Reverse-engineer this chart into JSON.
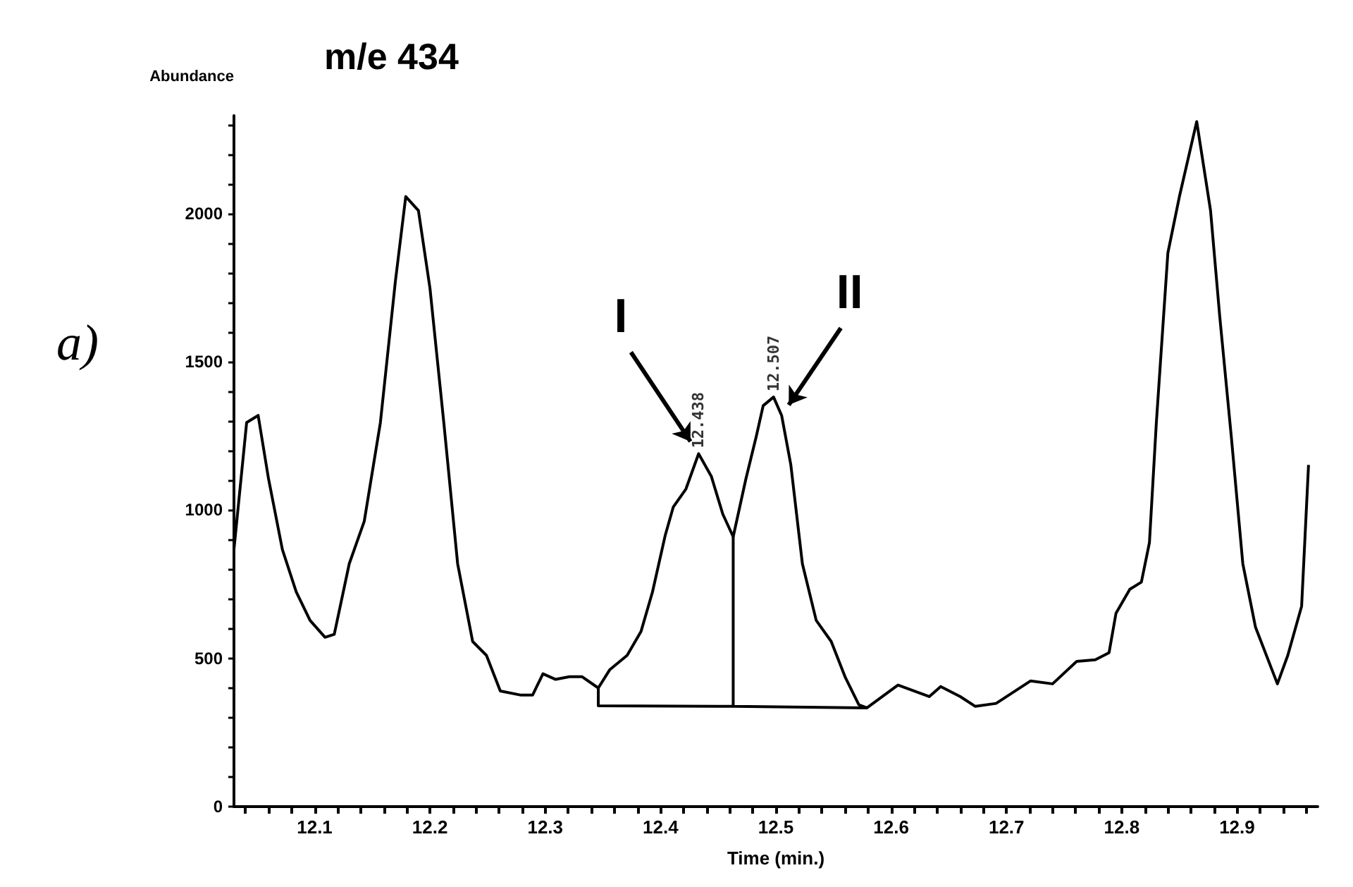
{
  "chart_data": {
    "type": "line",
    "title": "m/e 434",
    "xlabel": "Time (min.)",
    "ylabel": "Abundance",
    "xlim": [
      12.03,
      12.97
    ],
    "ylim": [
      0,
      2330
    ],
    "xticks": [
      {
        "value": 12.04,
        "label": null
      },
      {
        "value": 12.06,
        "label": null
      },
      {
        "value": 12.08,
        "label": null
      },
      12.1,
      {
        "value": 12.12,
        "label": null
      },
      {
        "value": 12.14,
        "label": null
      },
      {
        "value": 12.16,
        "label": null
      },
      {
        "value": 12.18,
        "label": null
      },
      12.2,
      {
        "value": 12.22,
        "label": null
      },
      {
        "value": 12.24,
        "label": null
      },
      {
        "value": 12.26,
        "label": null
      },
      {
        "value": 12.28,
        "label": null
      },
      12.3,
      {
        "value": 12.32,
        "label": null
      },
      {
        "value": 12.34,
        "label": null
      },
      {
        "value": 12.36,
        "label": null
      },
      {
        "value": 12.38,
        "label": null
      },
      12.4,
      {
        "value": 12.42,
        "label": null
      },
      {
        "value": 12.44,
        "label": null
      },
      {
        "value": 12.46,
        "label": null
      },
      {
        "value": 12.48,
        "label": null
      },
      12.5,
      {
        "value": 12.52,
        "label": null
      },
      {
        "value": 12.54,
        "label": null
      },
      {
        "value": 12.56,
        "label": null
      },
      {
        "value": 12.58,
        "label": null
      },
      12.6,
      {
        "value": 12.62,
        "label": null
      },
      {
        "value": 12.64,
        "label": null
      },
      {
        "value": 12.66,
        "label": null
      },
      {
        "value": 12.68,
        "label": null
      },
      12.7,
      {
        "value": 12.72,
        "label": null
      },
      {
        "value": 12.74,
        "label": null
      },
      {
        "value": 12.76,
        "label": null
      },
      {
        "value": 12.78,
        "label": null
      },
      12.8,
      {
        "value": 12.82,
        "label": null
      },
      {
        "value": 12.84,
        "label": null
      },
      {
        "value": 12.86,
        "label": null
      },
      {
        "value": 12.88,
        "label": null
      },
      12.9,
      {
        "value": 12.92,
        "label": null
      },
      {
        "value": 12.94,
        "label": null
      },
      {
        "value": 12.96,
        "label": null
      }
    ],
    "yticks": [
      0,
      {
        "value": 100,
        "label": null
      },
      {
        "value": 200,
        "label": null
      },
      {
        "value": 300,
        "label": null
      },
      {
        "value": 400,
        "label": null
      },
      500,
      {
        "value": 600,
        "label": null
      },
      {
        "value": 700,
        "label": null
      },
      {
        "value": 800,
        "label": null
      },
      {
        "value": 900,
        "label": null
      },
      1000,
      {
        "value": 1100,
        "label": null
      },
      {
        "value": 1200,
        "label": null
      },
      {
        "value": 1300,
        "label": null
      },
      {
        "value": 1400,
        "label": null
      },
      1500,
      {
        "value": 1600,
        "label": null
      },
      {
        "value": 1700,
        "label": null
      },
      {
        "value": 1800,
        "label": null
      },
      {
        "value": 1900,
        "label": null
      },
      2000,
      {
        "value": 2100,
        "label": null
      },
      {
        "value": 2200,
        "label": null
      },
      {
        "value": 2300,
        "label": null
      }
    ],
    "grid": false,
    "marker": "none",
    "line_style": "solid",
    "series": [
      {
        "color": "#000000",
        "x": [
          12.03,
          12.041,
          12.051,
          12.06,
          12.072,
          12.084,
          12.096,
          12.109,
          12.117,
          12.13,
          12.143,
          12.157,
          12.17,
          12.179,
          12.19,
          12.2,
          12.212,
          12.224,
          12.237,
          12.249,
          12.261,
          12.279,
          12.289,
          12.298,
          12.309,
          12.321,
          12.332,
          12.346,
          12.356,
          12.371,
          12.383,
          12.393,
          12.404,
          12.411,
          12.422,
          12.433,
          12.444,
          12.454,
          12.463,
          12.474,
          12.483,
          12.489,
          12.498,
          12.505,
          12.513,
          12.523,
          12.535,
          12.548,
          12.56,
          12.572,
          12.579,
          12.594,
          12.606,
          12.633,
          12.643,
          12.66,
          12.673,
          12.691,
          12.721,
          12.74,
          12.761,
          12.777,
          12.789,
          12.795,
          12.807,
          12.817,
          12.824,
          12.83,
          12.84,
          12.85,
          12.865,
          12.877,
          12.885,
          12.895,
          12.905,
          12.916,
          12.935,
          12.944,
          12.956,
          12.962
        ],
        "values": [
          867,
          1295,
          1319,
          1105,
          867,
          724,
          628,
          571,
          581,
          819,
          962,
          1295,
          1771,
          2057,
          2010,
          1748,
          1295,
          819,
          557,
          510,
          390,
          376,
          376,
          448,
          429,
          438,
          438,
          400,
          462,
          510,
          590,
          724,
          914,
          1010,
          1071,
          1190,
          1114,
          986,
          910,
          1105,
          1248,
          1352,
          1381,
          1319,
          1152,
          819,
          628,
          557,
          438,
          343,
          333,
          376,
          410,
          371,
          405,
          371,
          338,
          348,
          424,
          414,
          490,
          495,
          519,
          652,
          733,
          757,
          890,
          1295,
          1867,
          2057,
          2310,
          2010,
          1652,
          1248,
          819,
          605,
          414,
          510,
          676,
          1152
        ]
      },
      {
        "color": "#000000",
        "x": [
          12.346,
          12.346,
          12.463,
          12.463,
          12.463,
          12.579
        ],
        "values": [
          400,
          340,
          338,
          910,
          338,
          333
        ]
      }
    ],
    "annotations": [
      {
        "text": "I",
        "x": 12.433,
        "y": 1190
      },
      {
        "text": "II",
        "x": 12.505,
        "y": 1319
      },
      {
        "text": "12.438",
        "x": 12.433,
        "y": 1190
      },
      {
        "text": "12.507",
        "x": 12.498,
        "y": 1381
      },
      "a)"
    ]
  }
}
